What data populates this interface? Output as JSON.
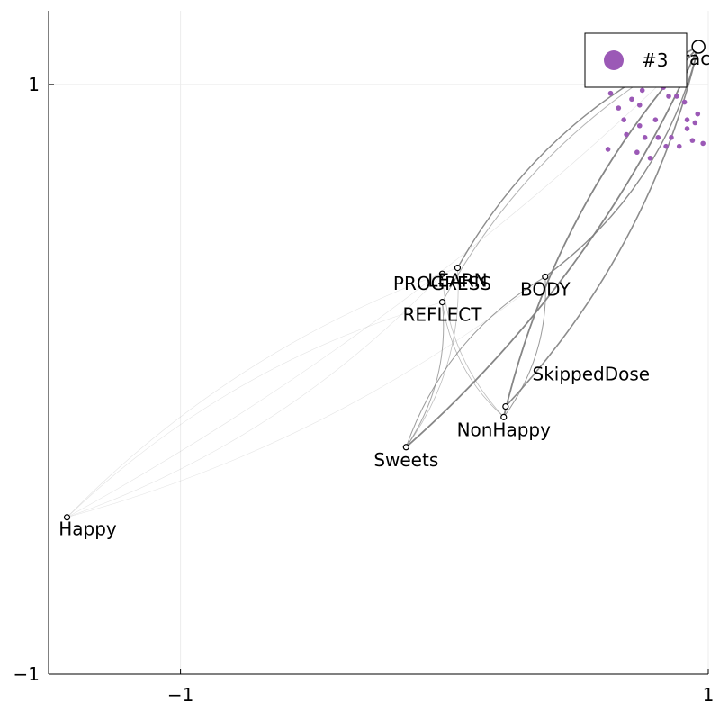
{
  "chart_data": {
    "type": "graph",
    "xlim": [
      -1.5,
      1.0
    ],
    "ylim": [
      -1.0,
      1.25
    ],
    "x_ticks": [
      {
        "value": -1,
        "label": "−1"
      },
      {
        "value": 1,
        "label": "1"
      }
    ],
    "y_ticks": [
      {
        "value": -1,
        "label": "−1"
      },
      {
        "value": 1,
        "label": "1"
      }
    ],
    "grid": true,
    "legend": {
      "placement": "top-right",
      "entries": [
        {
          "label": "#3",
          "color": "#9b59b6"
        }
      ]
    },
    "colors": {
      "edge": "#808080",
      "scatter": "#9b59b6",
      "axis": "#000000",
      "grid": "#ececec"
    },
    "nodes": [
      {
        "name": "DoseTracking",
        "label": "DoseTrac",
        "x": 0.963,
        "y": 1.128,
        "big": true
      },
      {
        "name": "LEARN",
        "label": "LEARN",
        "x": 0.05,
        "y": 0.378
      },
      {
        "name": "PROGRESS",
        "label": "PROGRESS",
        "x": -0.008,
        "y": 0.358
      },
      {
        "name": "BODY",
        "label": "BODY",
        "x": 0.382,
        "y": 0.348
      },
      {
        "name": "REFLECT",
        "label": "REFLECT",
        "x": -0.008,
        "y": 0.262
      },
      {
        "name": "SkippedDose",
        "label": "SkippedDose",
        "x": 0.232,
        "y": -0.092
      },
      {
        "name": "NonHappy",
        "label": "NonHappy",
        "x": 0.225,
        "y": -0.128
      },
      {
        "name": "Sweets",
        "label": "Sweets",
        "x": -0.145,
        "y": -0.23
      },
      {
        "name": "Happy",
        "label": "Happy",
        "x": -1.43,
        "y": -0.468
      }
    ],
    "scatter": [
      [
        0.63,
        0.97
      ],
      [
        0.65,
        1.0
      ],
      [
        0.7,
        1.0
      ],
      [
        0.75,
        0.98
      ],
      [
        0.8,
        1.0
      ],
      [
        0.83,
        0.99
      ],
      [
        0.66,
        0.92
      ],
      [
        0.71,
        0.95
      ],
      [
        0.74,
        0.93
      ],
      [
        0.85,
        0.96
      ],
      [
        0.88,
        0.96
      ],
      [
        0.91,
        0.94
      ],
      [
        0.68,
        0.88
      ],
      [
        0.74,
        0.86
      ],
      [
        0.8,
        0.88
      ],
      [
        0.92,
        0.88
      ],
      [
        0.95,
        0.87
      ],
      [
        0.69,
        0.83
      ],
      [
        0.76,
        0.82
      ],
      [
        0.81,
        0.82
      ],
      [
        0.86,
        0.82
      ],
      [
        0.92,
        0.85
      ],
      [
        0.96,
        0.9
      ],
      [
        0.62,
        0.78
      ],
      [
        0.73,
        0.77
      ],
      [
        0.78,
        0.75
      ],
      [
        0.84,
        0.79
      ],
      [
        0.89,
        0.79
      ],
      [
        0.94,
        0.81
      ],
      [
        0.98,
        0.8
      ]
    ],
    "edges": [
      {
        "from": "Happy",
        "to": "DoseTracking",
        "w": 0.6,
        "o": 0.22
      },
      {
        "from": "Happy",
        "to": "LEARN",
        "w": 0.6,
        "o": 0.22
      },
      {
        "from": "Happy",
        "to": "PROGRESS",
        "w": 0.6,
        "o": 0.22
      },
      {
        "from": "Happy",
        "to": "REFLECT",
        "w": 0.6,
        "o": 0.22
      },
      {
        "from": "Happy",
        "to": "BODY",
        "w": 0.6,
        "o": 0.2
      },
      {
        "from": "LEARN",
        "to": "DoseTracking",
        "w": 1.4,
        "o": 0.9
      },
      {
        "from": "BODY",
        "to": "DoseTracking",
        "w": 1.4,
        "o": 0.9
      },
      {
        "from": "REFLECT",
        "to": "DoseTracking",
        "w": 1.0,
        "o": 0.6
      },
      {
        "from": "Sweets",
        "to": "DoseTracking",
        "w": 1.8,
        "o": 0.95
      },
      {
        "from": "NonHappy",
        "to": "DoseTracking",
        "w": 1.8,
        "o": 0.95
      },
      {
        "from": "SkippedDose",
        "to": "DoseTracking",
        "w": 1.6,
        "o": 0.9
      },
      {
        "from": "BODY",
        "to": "NonHappy",
        "w": 1.0,
        "o": 0.8
      },
      {
        "from": "BODY",
        "to": "Sweets",
        "w": 1.0,
        "o": 0.8
      },
      {
        "from": "REFLECT",
        "to": "Sweets",
        "w": 1.0,
        "o": 0.7
      },
      {
        "from": "REFLECT",
        "to": "NonHappy",
        "w": 0.8,
        "o": 0.6
      },
      {
        "from": "LEARN",
        "to": "Sweets",
        "w": 0.8,
        "o": 0.5
      },
      {
        "from": "PROGRESS",
        "to": "NonHappy",
        "w": 0.8,
        "o": 0.5
      }
    ]
  }
}
